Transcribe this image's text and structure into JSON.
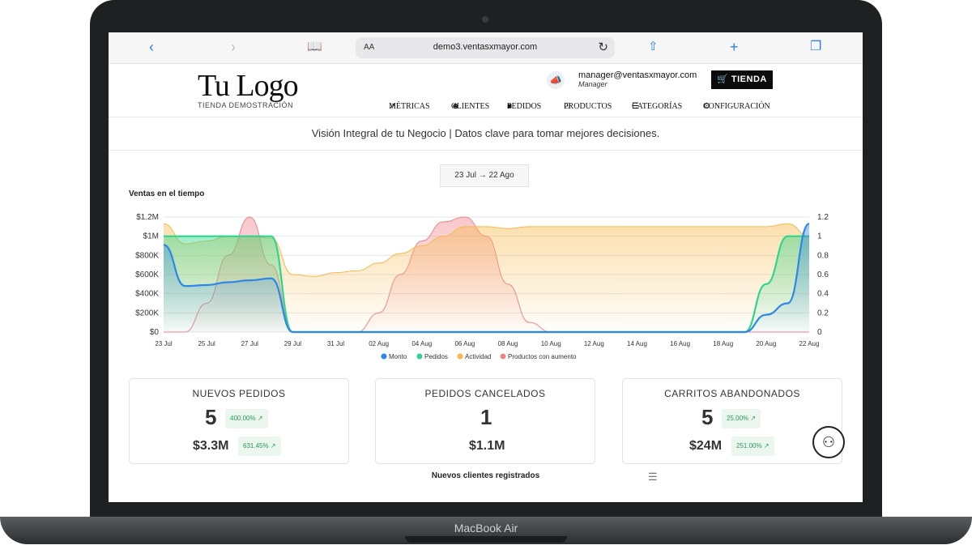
{
  "device": {
    "brand": "MacBook Air"
  },
  "browser": {
    "back_icon": "chevron-left-icon",
    "forward_icon": "chevron-right-icon",
    "reader_icon": "book-icon",
    "text_size": "AA",
    "url": "demo3.ventasxmayor.com",
    "reload_icon": "reload-icon",
    "share_icon": "share-icon",
    "new_tab_icon": "plus-icon",
    "tabs_icon": "tabs-icon"
  },
  "header": {
    "logo_main": "Tu Logo",
    "logo_sub": "TIENDA DEMOSTRACIÓN",
    "user_email": "manager@ventasxmayor.com",
    "user_role": "Manager",
    "store_button": "TIENDA",
    "nav": {
      "metricas": "MÉTRICAS",
      "clientes": "CLIENTES",
      "pedidos": "PEDIDOS",
      "productos": "PRODUCTOS",
      "categorias": "CATEGORÍAS",
      "configuracion": "CONFIGURACIÓN"
    }
  },
  "tagline": "Visión Integral de tu Negocio | Datos clave para tomar mejores decisiones.",
  "date_range": "23 Jul → 22 Ago",
  "chart_data": {
    "type": "area",
    "title": "Ventas en el tiempo",
    "x": [
      "23 Jul",
      "24 Jul",
      "25 Jul",
      "26 Jul",
      "27 Jul",
      "28 Jul",
      "29 Jul",
      "30 Jul",
      "31 Jul",
      "01 Aug",
      "02 Aug",
      "03 Aug",
      "04 Aug",
      "05 Aug",
      "06 Aug",
      "07 Aug",
      "08 Aug",
      "09 Aug",
      "10 Aug",
      "11 Aug",
      "12 Aug",
      "13 Aug",
      "14 Aug",
      "15 Aug",
      "16 Aug",
      "17 Aug",
      "18 Aug",
      "19 Aug",
      "20 Aug",
      "21 Aug",
      "22 Aug"
    ],
    "x_tick_labels": [
      "23 Jul",
      "25 Jul",
      "27 Jul",
      "29 Jul",
      "31 Jul",
      "02 Aug",
      "04 Aug",
      "06 Aug",
      "08 Aug",
      "10 Aug",
      "12 Aug",
      "14 Aug",
      "16 Aug",
      "18 Aug",
      "20 Aug",
      "22 Aug"
    ],
    "y_left_ticks": [
      "$0",
      "$200K",
      "$400K",
      "$600K",
      "$800K",
      "$1M",
      "$1.2M"
    ],
    "y_right_ticks": [
      "0",
      "0.2",
      "0.4",
      "0.6",
      "0.8",
      "1",
      "1.2"
    ],
    "ylim_left": [
      0,
      1200000
    ],
    "ylim_right": [
      0,
      1.2
    ],
    "grid": true,
    "legend_position": "bottom",
    "series": [
      {
        "name": "Monto",
        "axis": "left",
        "color": "#2e86e8",
        "values": [
          910000,
          480000,
          490000,
          520000,
          540000,
          560000,
          0,
          0,
          0,
          0,
          0,
          0,
          0,
          0,
          0,
          0,
          0,
          0,
          0,
          0,
          0,
          0,
          0,
          0,
          0,
          0,
          0,
          0,
          180000,
          300000,
          1130000
        ]
      },
      {
        "name": "Pedidos",
        "axis": "right",
        "color": "#2fd58c",
        "values": [
          1,
          1,
          1,
          1,
          1,
          1,
          0,
          0,
          0,
          0,
          0,
          0,
          0,
          0,
          0,
          0,
          0,
          0,
          0,
          0,
          0,
          0,
          0,
          0,
          0,
          0,
          0,
          0,
          0.5,
          1,
          1
        ]
      },
      {
        "name": "Actividad",
        "axis": "right",
        "color": "#f7b84b",
        "values": [
          1.13,
          0.92,
          0.95,
          1.0,
          1.0,
          0.98,
          0.6,
          0.58,
          0.62,
          0.64,
          0.72,
          0.82,
          0.9,
          1.0,
          1.1,
          1.1,
          1.08,
          1.1,
          1.1,
          1.1,
          1.1,
          1.1,
          1.1,
          1.1,
          1.1,
          1.1,
          1.1,
          1.1,
          1.1,
          1.13,
          1.0
        ]
      },
      {
        "name": "Productos con aumento",
        "axis": "right",
        "color": "#f0828c",
        "values": [
          0,
          0,
          0.3,
          0.8,
          1.2,
          0.7,
          0,
          0,
          0,
          0,
          0.2,
          0.6,
          0.95,
          1.15,
          1.2,
          1.0,
          0.5,
          0.1,
          0,
          0,
          0,
          0,
          0,
          0,
          0,
          0,
          0,
          0,
          0,
          0,
          0
        ]
      }
    ]
  },
  "cards": [
    {
      "title": "NUEVOS PEDIDOS",
      "count": "5",
      "count_pill": "400.00%",
      "amount": "$3.3M",
      "amount_pill": "631.45%"
    },
    {
      "title": "PEDIDOS CANCELADOS",
      "count": "1",
      "amount": "$1.1M"
    },
    {
      "title": "CARRITOS ABANDONADOS",
      "count": "5",
      "count_pill": "25.00%",
      "amount": "$24M",
      "amount_pill": "251.00%"
    }
  ],
  "new_clients_title": "Nuevos clientes registrados",
  "support_icon": "support-agent-icon",
  "menu_icon": "hamburger-icon"
}
